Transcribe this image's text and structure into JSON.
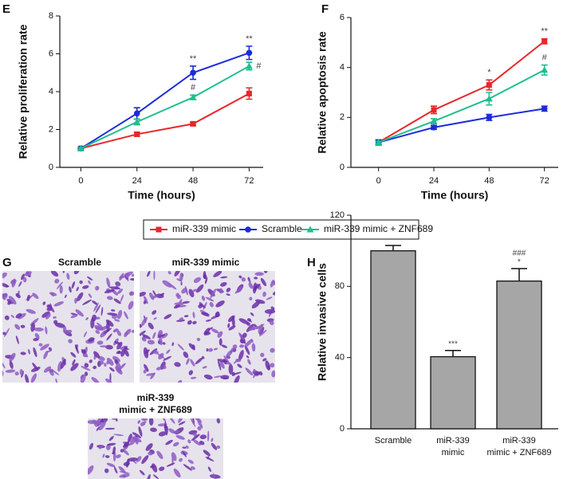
{
  "chart_data": [
    {
      "type": "line",
      "panel": "E",
      "xlabel": "Time (hours)",
      "ylabel": "Relative proliferation rate",
      "x": [
        0,
        24,
        48,
        72
      ],
      "xlim": [
        -9,
        78
      ],
      "xticks": [
        0,
        24,
        48,
        72
      ],
      "ylim": [
        0,
        8
      ],
      "yticks": [
        0,
        2,
        4,
        6,
        8
      ],
      "legend": "bottom",
      "series": [
        {
          "name": "miR-339 mimic",
          "color": "#e8262a",
          "marker": "square",
          "values": [
            1.0,
            1.75,
            2.3,
            3.9
          ],
          "errors": [
            0.05,
            0.1,
            0.08,
            0.3
          ],
          "annotations": [
            null,
            null,
            null,
            null
          ]
        },
        {
          "name": "Scramble",
          "color": "#1c2bd9",
          "marker": "circle",
          "values": [
            1.0,
            2.85,
            5.0,
            6.05
          ],
          "errors": [
            0.05,
            0.3,
            0.35,
            0.35
          ],
          "annotations": [
            null,
            null,
            "**",
            "**"
          ]
        },
        {
          "name": "miR-339 mimic + ZNF689",
          "color": "#1fbf8f",
          "marker": "triangle",
          "values": [
            1.0,
            2.4,
            3.7,
            5.35
          ],
          "errors": [
            0.05,
            0.15,
            0.12,
            0.2
          ],
          "annotations": [
            null,
            null,
            "#",
            "#"
          ]
        }
      ]
    },
    {
      "type": "line",
      "panel": "F",
      "xlabel": "Time (hours)",
      "ylabel": "Relative apoptosis rate",
      "x": [
        0,
        24,
        48,
        72
      ],
      "xlim": [
        -12,
        78
      ],
      "xticks": [
        0,
        24,
        48,
        72
      ],
      "ylim": [
        0,
        6
      ],
      "yticks": [
        0,
        2,
        4,
        6
      ],
      "series": [
        {
          "color": "#e8262a",
          "marker": "square",
          "values": [
            1.0,
            2.3,
            3.3,
            5.05
          ],
          "errors": [
            0.1,
            0.15,
            0.2,
            0.1
          ],
          "annotations": [
            null,
            null,
            "*",
            "**"
          ]
        },
        {
          "color": "#1c2bd9",
          "marker": "circle",
          "values": [
            1.0,
            1.6,
            2.0,
            2.35
          ],
          "errors": [
            0.1,
            0.08,
            0.12,
            0.1
          ],
          "annotations": [
            null,
            null,
            null,
            null
          ]
        },
        {
          "color": "#1fbf8f",
          "marker": "triangle",
          "values": [
            1.0,
            1.85,
            2.75,
            3.9
          ],
          "errors": [
            0.05,
            0.1,
            0.25,
            0.2
          ],
          "annotations": [
            null,
            null,
            null,
            "#"
          ]
        }
      ]
    },
    {
      "type": "bar",
      "panel": "H",
      "ylabel": "Relative invasive cells",
      "categories": [
        [
          "Scramble"
        ],
        [
          "miR-339",
          "mimic"
        ],
        [
          "miR-339",
          "mimic + ZNF689"
        ]
      ],
      "values": [
        100,
        40.5,
        83
      ],
      "errors": [
        3,
        3.5,
        7
      ],
      "color": "#a6a6a6",
      "annotations": [
        null,
        [
          "***"
        ],
        [
          "###",
          "*"
        ]
      ],
      "ylim": [
        0,
        120
      ],
      "yticks": [
        0,
        40,
        80,
        120
      ]
    }
  ],
  "images": {
    "panel": "G",
    "captions": [
      [
        "Scramble"
      ],
      [
        "miR-339 mimic"
      ],
      [
        "miR-339",
        "mimic + ZNF689"
      ]
    ]
  }
}
